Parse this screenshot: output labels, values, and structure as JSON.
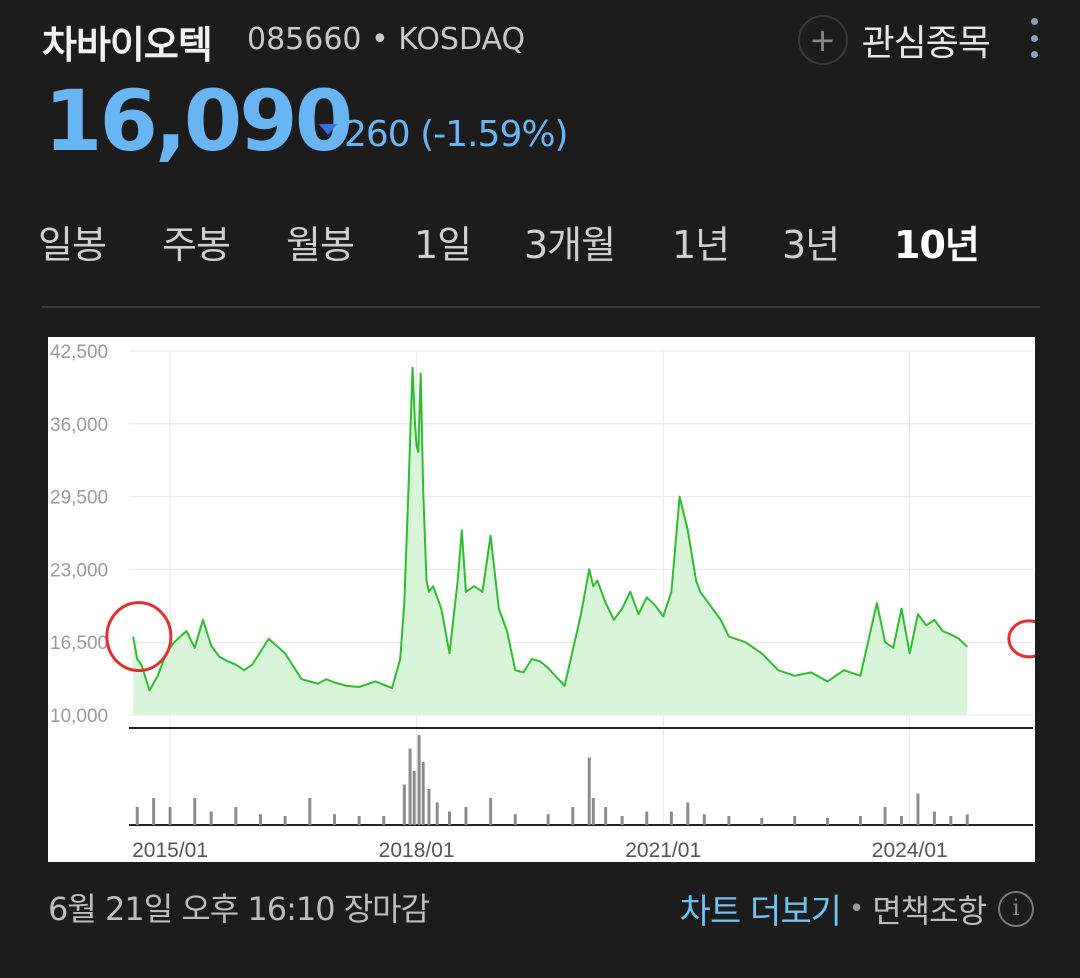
{
  "stock": {
    "name": "차바이오텍",
    "meta": "085660 • KOSDAQ",
    "price": "16,090",
    "change": "260 (-1.59%)",
    "direction": "down"
  },
  "watch": {
    "label": "관심종목",
    "icon": "plus-circle-icon"
  },
  "menu": {
    "icon": "more-vertical-icon"
  },
  "tabs": [
    {
      "label": "일봉"
    },
    {
      "label": "주봉"
    },
    {
      "label": "월봉"
    },
    {
      "label": "1일"
    },
    {
      "label": "3개월"
    },
    {
      "label": "1년"
    },
    {
      "label": "3년"
    },
    {
      "label": "10년",
      "active": true
    }
  ],
  "footer": {
    "timestamp": "6월 21일 오후 16:10 장마감",
    "more_chart": "차트 더보기",
    "separator": "•",
    "disclaimer": "면책조항",
    "info_icon": "info-icon"
  },
  "colors": {
    "price": "#69b4f2",
    "line": "#2ebd2e",
    "area": "#d9f5d9",
    "volume": "#8c8c8c",
    "annotation": "#e23030"
  },
  "chart_data": {
    "type": "area",
    "y_ticks": [
      "42,500",
      "36,000",
      "29,500",
      "23,000",
      "16,500",
      "10,000"
    ],
    "y_tick_values": [
      42500,
      36000,
      29500,
      23000,
      16500,
      10000
    ],
    "ylim": [
      10000,
      42500
    ],
    "x_ticks": [
      "2015/01",
      "2018/01",
      "2021/01",
      "2024/01"
    ],
    "x_tick_values": [
      2015.0,
      2018.0,
      2021.0,
      2024.0
    ],
    "xlim": [
      2014.5,
      2025.5
    ],
    "series": [
      {
        "x": [
          2014.55,
          2014.6,
          2014.65,
          2014.75,
          2014.85,
          2014.95,
          2015.05,
          2015.2,
          2015.3,
          2015.4,
          2015.5,
          2015.6,
          2015.7,
          2015.8,
          2015.9,
          2016.0,
          2016.2,
          2016.4,
          2016.6,
          2016.8,
          2016.9,
          2017.0,
          2017.15,
          2017.3,
          2017.5,
          2017.7,
          2017.8,
          2017.85,
          2017.9,
          2017.95,
          2017.98,
          2018.0,
          2018.02,
          2018.05,
          2018.08,
          2018.12,
          2018.15,
          2018.2,
          2018.3,
          2018.4,
          2018.5,
          2018.55,
          2018.6,
          2018.7,
          2018.8,
          2018.9,
          2019.0,
          2019.1,
          2019.2,
          2019.3,
          2019.4,
          2019.5,
          2019.6,
          2019.8,
          2020.0,
          2020.1,
          2020.15,
          2020.2,
          2020.3,
          2020.4,
          2020.5,
          2020.6,
          2020.7,
          2020.8,
          2020.9,
          2021.0,
          2021.1,
          2021.2,
          2021.3,
          2021.4,
          2021.45,
          2021.5,
          2021.6,
          2021.7,
          2021.8,
          2022.0,
          2022.2,
          2022.4,
          2022.6,
          2022.8,
          2023.0,
          2023.2,
          2023.4,
          2023.6,
          2023.7,
          2023.8,
          2023.9,
          2024.0,
          2024.1,
          2024.2,
          2024.3,
          2024.4,
          2024.5,
          2024.6,
          2024.7
        ],
        "values": [
          17000,
          15000,
          14500,
          12200,
          13500,
          15500,
          16500,
          17500,
          16000,
          18500,
          16200,
          15200,
          14800,
          14500,
          14000,
          14500,
          16800,
          15500,
          13200,
          12800,
          13200,
          12900,
          12600,
          12500,
          13000,
          12400,
          15000,
          20000,
          30000,
          41000,
          36000,
          34000,
          33500,
          40500,
          30000,
          22000,
          21000,
          21500,
          19500,
          15500,
          22000,
          26500,
          21000,
          21500,
          21000,
          26000,
          19500,
          17500,
          14000,
          13800,
          15000,
          14800,
          14200,
          12600,
          19000,
          23000,
          21500,
          22000,
          20000,
          18500,
          19500,
          21000,
          19000,
          20500,
          19800,
          18800,
          21000,
          29500,
          26500,
          22000,
          21000,
          20500,
          19500,
          18500,
          17000,
          16500,
          15500,
          14000,
          13500,
          13800,
          13000,
          14000,
          13500,
          20000,
          16500,
          16000,
          19500,
          15500,
          19000,
          18000,
          18500,
          17500,
          17200,
          16800,
          16090
        ],
        "color": "#2ebd2e"
      }
    ],
    "volume": {
      "x": [
        2014.6,
        2014.8,
        2015.0,
        2015.3,
        2015.5,
        2015.8,
        2016.1,
        2016.4,
        2016.7,
        2017.0,
        2017.3,
        2017.6,
        2017.85,
        2017.92,
        2017.97,
        2018.03,
        2018.08,
        2018.15,
        2018.25,
        2018.4,
        2018.6,
        2018.9,
        2019.2,
        2019.6,
        2019.9,
        2020.1,
        2020.15,
        2020.3,
        2020.5,
        2020.8,
        2021.1,
        2021.3,
        2021.5,
        2021.8,
        2022.2,
        2022.6,
        2023.0,
        2023.4,
        2023.7,
        2023.9,
        2024.1,
        2024.3,
        2024.5,
        2024.7
      ],
      "values": [
        0.2,
        0.3,
        0.2,
        0.3,
        0.15,
        0.2,
        0.12,
        0.1,
        0.3,
        0.12,
        0.1,
        0.1,
        0.45,
        0.85,
        0.6,
        1.0,
        0.7,
        0.4,
        0.25,
        0.15,
        0.2,
        0.3,
        0.12,
        0.12,
        0.2,
        0.75,
        0.3,
        0.2,
        0.1,
        0.15,
        0.15,
        0.25,
        0.12,
        0.1,
        0.08,
        0.1,
        0.08,
        0.1,
        0.2,
        0.1,
        0.35,
        0.15,
        0.1,
        0.12
      ]
    },
    "annotations": [
      {
        "shape": "circle",
        "x": 2014.62,
        "y": 17000
      },
      {
        "shape": "circle",
        "x": 2025.45,
        "y": 16800
      }
    ],
    "grid": true,
    "legend": "none"
  }
}
